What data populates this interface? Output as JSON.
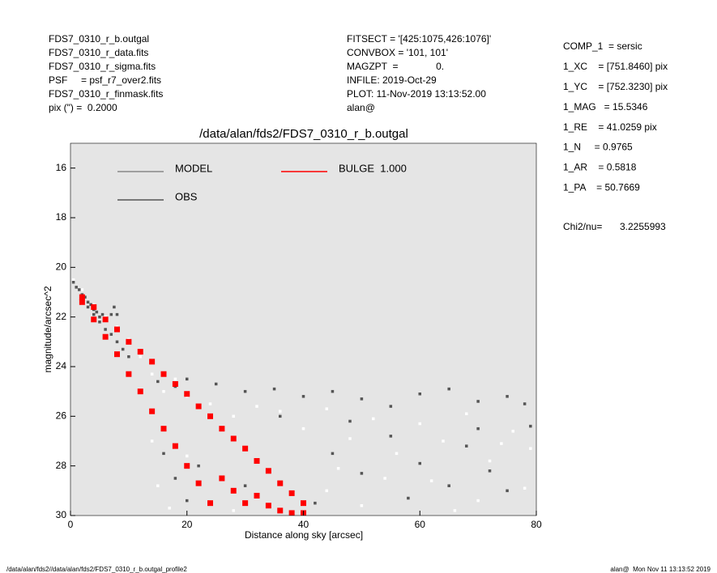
{
  "header": {
    "left": [
      "FDS7_0310_r_b.outgal",
      "FDS7_0310_r_data.fits",
      "FDS7_0310_r_sigma.fits",
      "PSF     = psf_r7_over2.fits",
      "FDS7_0310_r_finmask.fits",
      "pix (\") =  0.2000"
    ],
    "middle": [
      "FITSECT = '[425:1075,426:1076]'",
      "CONVBOX = '101, 101'",
      "MAGZPT  =              0.",
      "INFILE: 2019-Oct-29",
      "PLOT: 11-Nov-2019 13:13:52.00",
      "alan@"
    ],
    "right": [
      "COMP_1  = sersic",
      "1_XC    = [751.8460] pix",
      "1_YC    = [752.3230] pix",
      "1_MAG   = 15.5346",
      "1_RE    = 41.0259 pix",
      "1_N     = 0.9765",
      "1_AR    = 0.5818",
      "1_PA    = 50.7669"
    ],
    "chi2_label": "Chi2/nu=",
    "chi2_value": "3.2255993"
  },
  "footer": {
    "left": "/data/alan/fds2//data/alan/fds2/FDS7_0310_r_b.outgal_profile2",
    "right": "alan@  Mon Nov 11 13:13:52 2019"
  },
  "chart_data": {
    "type": "scatter",
    "title": "/data/alan/fds2/FDS7_0310_r_b.outgal",
    "x_label": "Distance along sky [arcsec]",
    "y_label": "magnitude/arcsec^2",
    "xlim": [
      0,
      80
    ],
    "xticks": [
      0,
      20,
      40,
      60,
      80
    ],
    "ylim": [
      30,
      15
    ],
    "yticks": [
      16,
      18,
      20,
      22,
      24,
      26,
      28,
      30
    ],
    "background": "#e5e5e5",
    "series": [
      {
        "name": "MODEL",
        "color": "#ffffff",
        "x": [
          0.5,
          2,
          4,
          6,
          8,
          10,
          12,
          14,
          16,
          18,
          20,
          24,
          28,
          32,
          36,
          40,
          44,
          48,
          52,
          56,
          60,
          64,
          68,
          72,
          76,
          79,
          14,
          15,
          17,
          20,
          44,
          50,
          62,
          70,
          78,
          46,
          54,
          66,
          74,
          28
        ],
        "values": [
          20.5,
          20.9,
          21.5,
          22.0,
          22.4,
          22.9,
          23.6,
          24.3,
          25.0,
          24.5,
          25.2,
          25.5,
          26.0,
          25.6,
          25.8,
          26.5,
          25.7,
          26.9,
          26.1,
          27.5,
          26.3,
          27.0,
          25.9,
          27.8,
          26.6,
          27.3,
          27.0,
          28.8,
          29.7,
          27.6,
          29.0,
          29.6,
          28.6,
          29.4,
          28.9,
          28.1,
          28.5,
          29.8,
          27.1,
          29.8
        ]
      },
      {
        "name": "OBS",
        "color": "#555555",
        "x": [
          0.5,
          1,
          1.5,
          2,
          2.5,
          3,
          3.5,
          4,
          4.5,
          5,
          5.5,
          6,
          7,
          7.5,
          8,
          3,
          4,
          5,
          6,
          7,
          8,
          9,
          10,
          15,
          18,
          20,
          25,
          30,
          35,
          40,
          45,
          50,
          55,
          60,
          65,
          70,
          75,
          78,
          16,
          18,
          20,
          22,
          45,
          50,
          55,
          60,
          65,
          70,
          75,
          42,
          48,
          58,
          68,
          72,
          79,
          36,
          30
        ],
        "values": [
          20.6,
          20.8,
          20.9,
          21.1,
          21.2,
          21.4,
          21.5,
          21.7,
          21.8,
          22.0,
          21.9,
          22.1,
          21.9,
          21.6,
          21.9,
          21.6,
          21.9,
          22.2,
          22.5,
          22.7,
          23.0,
          23.3,
          23.6,
          24.6,
          24.8,
          24.5,
          24.7,
          25.0,
          24.9,
          25.2,
          25.0,
          25.3,
          25.6,
          25.1,
          24.9,
          25.4,
          25.2,
          25.5,
          27.5,
          28.5,
          29.4,
          28.0,
          27.5,
          28.3,
          26.8,
          27.9,
          28.8,
          26.5,
          29.0,
          29.5,
          26.2,
          29.3,
          27.2,
          28.2,
          26.4,
          26.0,
          28.8
        ]
      },
      {
        "name": "BULGE  1.000",
        "color": "#ff0000",
        "x": [
          2,
          2,
          4,
          4,
          6,
          6,
          8,
          8,
          10,
          10,
          12,
          12,
          14,
          14,
          16,
          16,
          18,
          18,
          20,
          20,
          22,
          22,
          24,
          24,
          26,
          26,
          28,
          28,
          30,
          30,
          32,
          32,
          34,
          34,
          36,
          36,
          38,
          38,
          40,
          40
        ],
        "values": [
          21.2,
          21.4,
          21.6,
          22.1,
          22.1,
          22.8,
          22.5,
          23.5,
          23.0,
          24.3,
          23.4,
          25.0,
          23.8,
          25.8,
          24.3,
          26.5,
          24.7,
          27.2,
          25.1,
          28.0,
          25.6,
          28.7,
          26.0,
          29.5,
          26.5,
          28.5,
          26.9,
          29.0,
          27.3,
          29.5,
          27.8,
          29.2,
          28.2,
          29.6,
          28.7,
          29.8,
          29.1,
          29.9,
          29.5,
          29.9
        ]
      }
    ]
  }
}
